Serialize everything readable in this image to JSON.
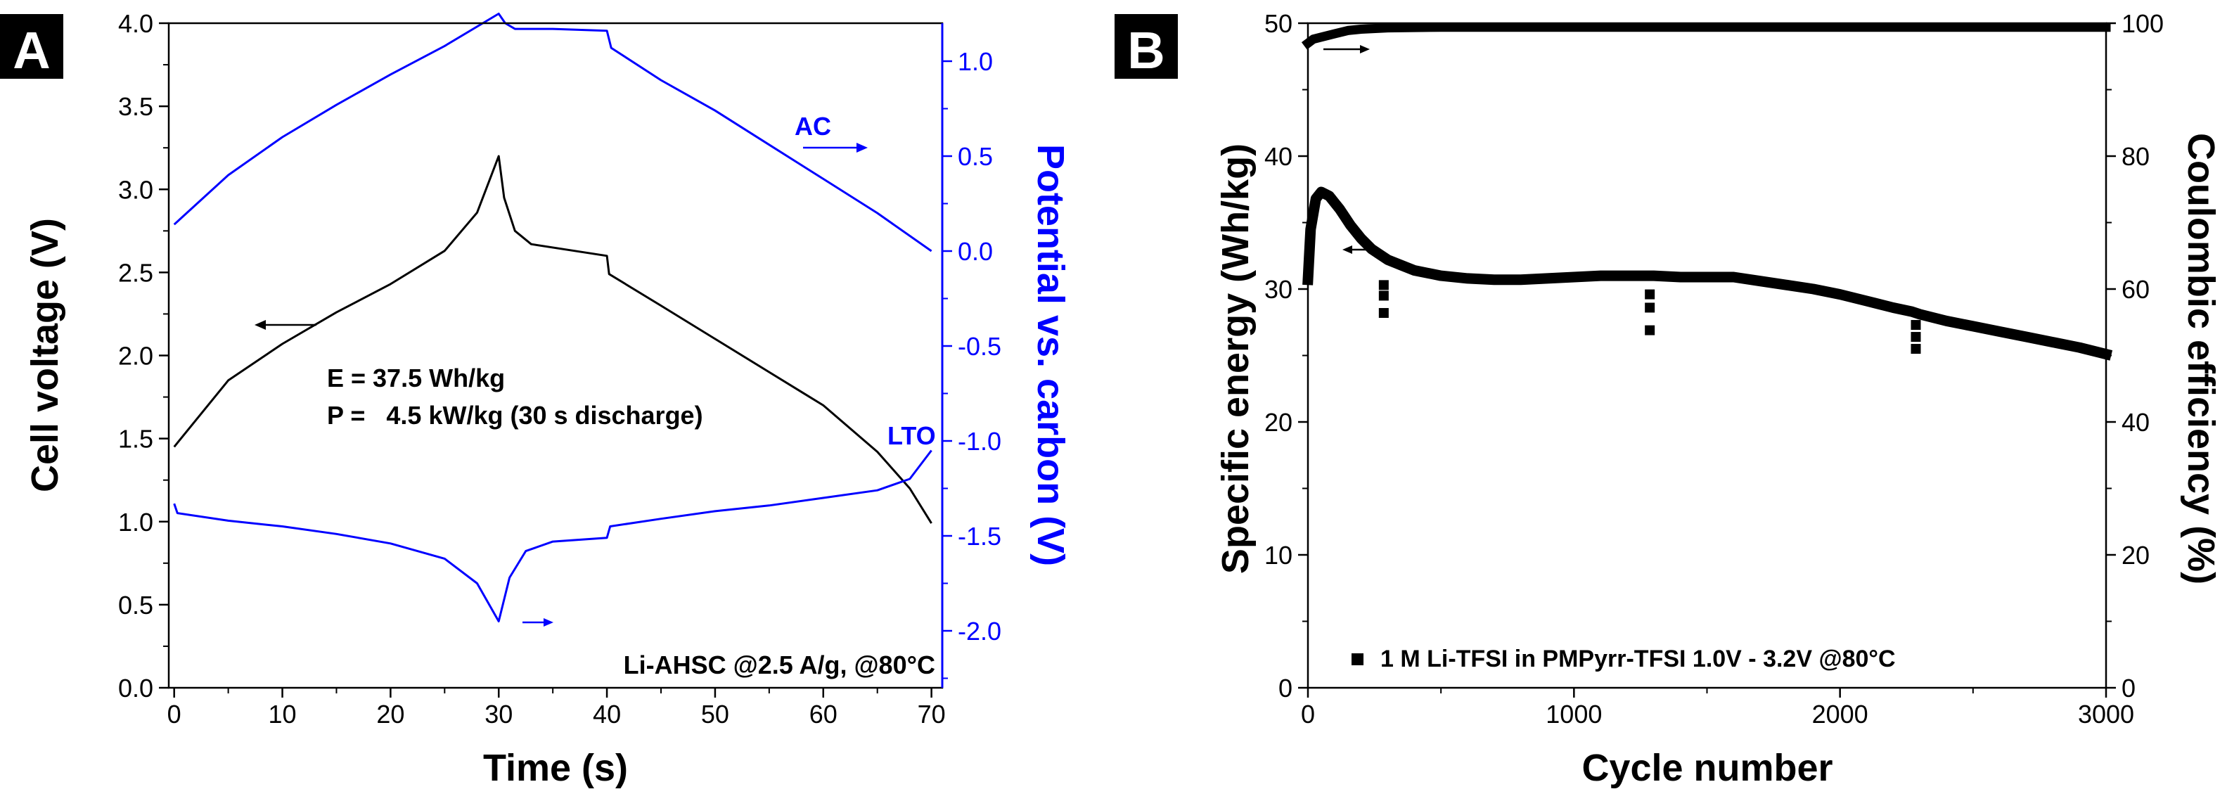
{
  "chart_data": [
    {
      "panel_label": "A",
      "type": "line",
      "xlabel": "Time (s)",
      "ylabel": "Cell voltage (V)",
      "y2label": "Potential vs. carbon (V)",
      "xlim": [
        -0.5,
        71
      ],
      "ylim": [
        0,
        4.0
      ],
      "y2lim": [
        -2.3,
        1.2
      ],
      "xticks": [
        "0",
        "10",
        "20",
        "30",
        "40",
        "50",
        "60",
        "70"
      ],
      "yticks": [
        "0.0",
        "0.5",
        "1.0",
        "1.5",
        "2.0",
        "2.5",
        "3.0",
        "3.5",
        "4.0"
      ],
      "y2ticks": [
        "-2.0",
        "-1.5",
        "-1.0",
        "-0.5",
        "0.0",
        "0.5",
        "1.0"
      ],
      "grid": false,
      "axis_colors": {
        "left": "#000000",
        "right": "#0000ff"
      },
      "series": [
        {
          "name": "Cell voltage",
          "axis": "left",
          "color": "#000000",
          "x": [
            0,
            5,
            10,
            15,
            20,
            25,
            28,
            30,
            30.5,
            31.5,
            33,
            40,
            40.2,
            45,
            50,
            55,
            60,
            65,
            68,
            70
          ],
          "y": [
            1.45,
            1.85,
            2.07,
            2.26,
            2.43,
            2.63,
            2.86,
            3.2,
            2.95,
            2.75,
            2.67,
            2.6,
            2.49,
            2.3,
            2.1,
            1.9,
            1.7,
            1.42,
            1.2,
            0.99
          ]
        },
        {
          "name": "AC",
          "axis": "right",
          "color": "#0000ff",
          "x": [
            0,
            5,
            10,
            15,
            20,
            25,
            30,
            30.6,
            31.5,
            35,
            40,
            40.4,
            45,
            50,
            55,
            60,
            65,
            70
          ],
          "y": [
            0.14,
            0.4,
            0.6,
            0.77,
            0.93,
            1.08,
            1.25,
            1.2,
            1.17,
            1.17,
            1.16,
            1.07,
            0.9,
            0.74,
            0.56,
            0.38,
            0.2,
            0.0
          ]
        },
        {
          "name": "LTO",
          "axis": "right",
          "color": "#0000ff",
          "x": [
            0,
            0.3,
            5,
            10,
            15,
            20,
            25,
            28,
            30,
            31,
            32.5,
            35,
            40,
            40.3,
            45,
            50,
            55,
            60,
            65,
            68,
            70
          ],
          "y": [
            -1.33,
            -1.38,
            -1.42,
            -1.45,
            -1.49,
            -1.54,
            -1.62,
            -1.75,
            -1.95,
            -1.72,
            -1.58,
            -1.53,
            -1.51,
            -1.45,
            -1.41,
            -1.37,
            -1.34,
            -1.3,
            -1.26,
            -1.2,
            -1.05
          ]
        }
      ],
      "labels": {
        "ac": "AC",
        "lto": "LTO",
        "energy": "E = 37.5 Wh/kg",
        "power": "P =   4.5 kW/kg (30 s discharge)",
        "condition": "Li-AHSC @2.5 A/g, @80°C"
      }
    },
    {
      "panel_label": "B",
      "type": "scatter",
      "xlabel": "Cycle number",
      "ylabel": "Specific energy (Wh/kg)",
      "y2label": "Coulombic efficiency (%)",
      "xlim": [
        0,
        3000
      ],
      "ylim": [
        0,
        50
      ],
      "y2lim": [
        0,
        100
      ],
      "xticks": [
        "0",
        "1000",
        "2000",
        "3000"
      ],
      "yticks": [
        "0",
        "10",
        "20",
        "30",
        "40",
        "50"
      ],
      "y2ticks": [
        "0",
        "20",
        "40",
        "60",
        "80",
        "100"
      ],
      "grid": false,
      "legend_position": "bottom-left",
      "series": [
        {
          "name": "1 M Li-TFSI in PMPyrr-TFSI 1.0V - 3.2V @80°C",
          "axis": "left",
          "color": "#000000",
          "x": [
            0,
            10,
            30,
            50,
            80,
            120,
            160,
            200,
            240,
            270,
            300,
            350,
            400,
            500,
            600,
            700,
            800,
            900,
            1000,
            1100,
            1200,
            1270,
            1300,
            1400,
            1500,
            1600,
            1700,
            1800,
            1900,
            2000,
            2100,
            2200,
            2270,
            2300,
            2400,
            2500,
            2600,
            2700,
            2800,
            2900,
            3000
          ],
          "y": [
            30.7,
            34.5,
            36.8,
            37.3,
            37.0,
            36.0,
            34.8,
            33.8,
            33.0,
            32.6,
            32.2,
            31.8,
            31.4,
            31.0,
            30.8,
            30.7,
            30.7,
            30.8,
            30.9,
            31.0,
            31.0,
            31.0,
            31.0,
            30.9,
            30.9,
            30.9,
            30.6,
            30.3,
            30.0,
            29.6,
            29.1,
            28.6,
            28.3,
            28.1,
            27.6,
            27.2,
            26.8,
            26.4,
            26.0,
            25.6,
            25.1
          ],
          "dips": [
            {
              "x": 285,
              "y": [
                30.3,
                29.5,
                28.2
              ]
            },
            {
              "x": 1285,
              "y": [
                29.6,
                28.6,
                26.9
              ]
            },
            {
              "x": 2285,
              "y": [
                27.3,
                26.4,
                25.5
              ]
            }
          ]
        },
        {
          "name": "Coulombic efficiency",
          "axis": "right",
          "color": "#000000",
          "x": [
            0,
            20,
            50,
            100,
            150,
            200,
            300,
            500,
            1000,
            1500,
            2000,
            2500,
            3000
          ],
          "y": [
            97.0,
            97.6,
            97.9,
            98.4,
            98.9,
            99.1,
            99.3,
            99.4,
            99.4,
            99.4,
            99.4,
            99.4,
            99.4
          ]
        }
      ]
    }
  ]
}
